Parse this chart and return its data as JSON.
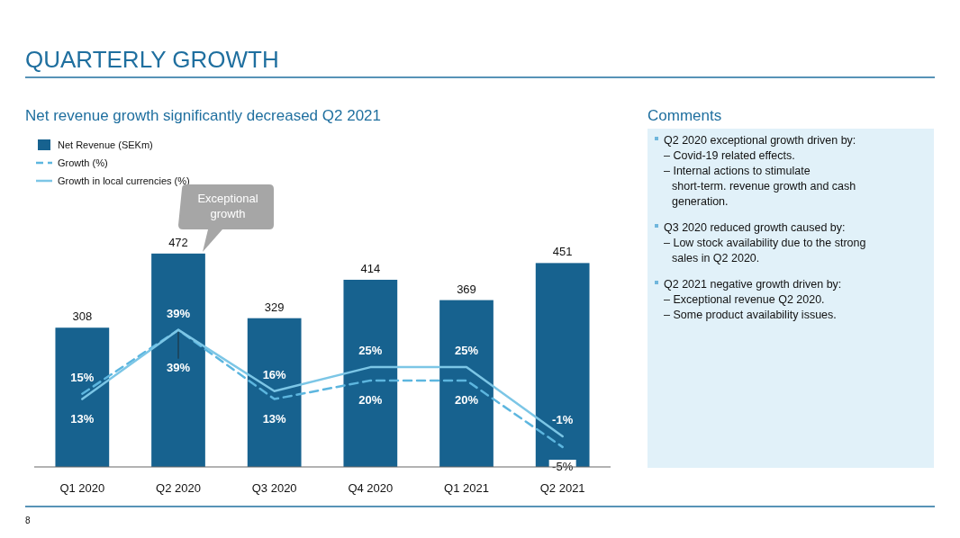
{
  "chart_data": [
    {
      "type": "bar",
      "title": "QUARTERLY GROWTH",
      "subtitle": "Net revenue growth significantly decreased Q2 2021",
      "categories": [
        "Q1 2020",
        "Q2 2020",
        "Q3 2020",
        "Q4 2020",
        "Q1 2021",
        "Q2 2021"
      ],
      "series": [
        {
          "name": "Net Revenue (SEKm)",
          "color": "#17628f",
          "values": [
            308,
            472,
            329,
            414,
            369,
            451
          ],
          "value_labels": [
            "308",
            "472",
            "329",
            "414",
            "369",
            "451"
          ]
        },
        {
          "name": "Growth (%)",
          "type": "line",
          "axis": "y2",
          "line_style": "dashed",
          "color": "#5db6df",
          "values": [
            15,
            39,
            13,
            20,
            20,
            -5
          ],
          "value_labels": [
            "15%",
            "39%",
            "13%",
            "20%",
            "20%",
            "-5%"
          ]
        },
        {
          "name": "Growth in local currencies (%)",
          "type": "line",
          "axis": "y2",
          "line_style": "solid",
          "color": "#7cc6e6",
          "values": [
            13,
            39,
            16,
            25,
            25,
            -1
          ],
          "value_labels": [
            "13%",
            "39%",
            "16%",
            "25%",
            "25%",
            "-1%"
          ]
        }
      ],
      "tick_labels": "x",
      "legend": "top left",
      "grid": false,
      "marker": "none",
      "annotations": [
        "Exceptional growth",
        "8"
      ]
    },
    {
      "type": "other",
      "title": "Comments",
      "annotations": [
        "Q2 2020 exceptional growth driven by:",
        "– Covid-19 related effects.",
        "– Internal actions to stimulate short-term. revenue growth and cash generation.",
        "Q3 2020 reduced growth caused by:",
        "– Low stock availability due to the strong sales in Q2 2020.",
        "Q2 2021 negative growth driven by:",
        "– Exceptional revenue Q2 2020.",
        "– Some product availability issues."
      ]
    }
  ]
}
